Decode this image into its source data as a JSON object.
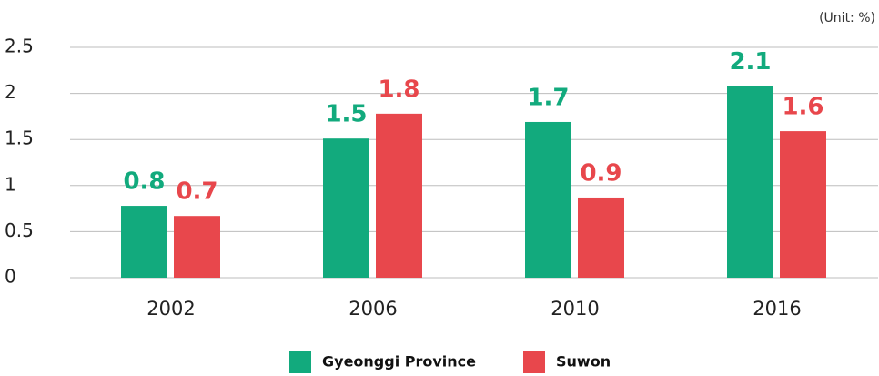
{
  "chart_data": {
    "type": "bar",
    "unit_note": "(Unit: %)",
    "categories": [
      "2002",
      "2006",
      "2010",
      "2016"
    ],
    "series": [
      {
        "name": "Gyeonggi Province",
        "color": "#12aa7d",
        "values": [
          0.78,
          1.51,
          1.69,
          2.08
        ],
        "value_labels": [
          "0.8",
          "1.5",
          "1.7",
          "2.1"
        ]
      },
      {
        "name": "Suwon",
        "color": "#e8474c",
        "values": [
          0.67,
          1.78,
          0.87,
          1.59
        ],
        "value_labels": [
          "0.7",
          "1.8",
          "0.9",
          "1.6"
        ]
      }
    ],
    "ylim": [
      0,
      2.5
    ],
    "yticks": [
      0,
      0.5,
      1,
      1.5,
      2,
      2.5
    ],
    "grid": true,
    "legend": "bottom"
  }
}
